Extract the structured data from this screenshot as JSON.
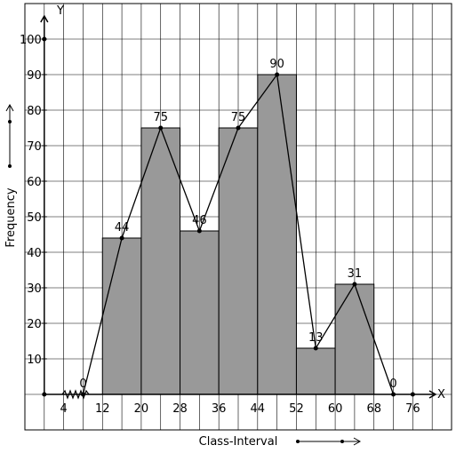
{
  "chart_data": {
    "type": "bar",
    "title": "",
    "xlabel": "Class-Interval",
    "ylabel": "Frequency",
    "x_axis_letter": "X",
    "y_axis_letter": "Y",
    "x_tick_labels": [
      "4",
      "12",
      "20",
      "28",
      "36",
      "44",
      "52",
      "60",
      "68",
      "76"
    ],
    "y_tick_labels": [
      "10",
      "20",
      "30",
      "40",
      "50",
      "60",
      "70",
      "80",
      "90",
      "100"
    ],
    "xlim": [
      -4,
      84
    ],
    "ylim": [
      -10,
      110
    ],
    "class_intervals": [
      {
        "from": 12,
        "to": 20,
        "value": 44
      },
      {
        "from": 20,
        "to": 28,
        "value": 75
      },
      {
        "from": 28,
        "to": 36,
        "value": 46
      },
      {
        "from": 36,
        "to": 44,
        "value": 75
      },
      {
        "from": 44,
        "to": 52,
        "value": 90
      },
      {
        "from": 52,
        "to": 60,
        "value": 13
      },
      {
        "from": 60,
        "to": 68,
        "value": 31
      }
    ],
    "frequency_polygon": {
      "x": [
        8,
        16,
        24,
        32,
        40,
        48,
        56,
        64,
        72
      ],
      "y": [
        0,
        44,
        75,
        46,
        75,
        90,
        13,
        31,
        0
      ],
      "labels": [
        "0",
        "44",
        "75",
        "46",
        "75",
        "90",
        "13",
        "31",
        "0"
      ]
    },
    "grid": true,
    "bar_color": "#999999",
    "grid_color": "#000000"
  }
}
